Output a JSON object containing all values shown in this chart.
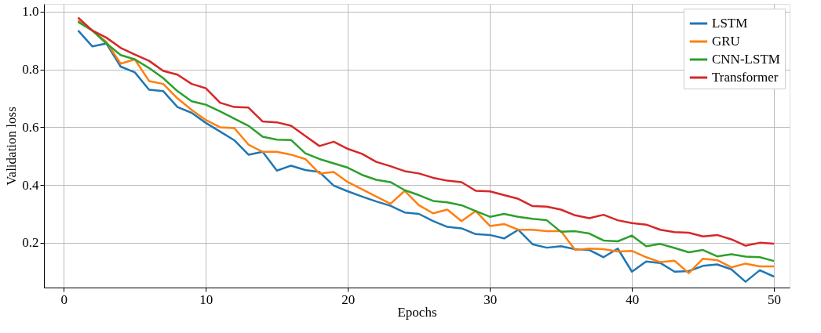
{
  "chart_data": {
    "type": "line",
    "xlabel": "Epochs",
    "ylabel": "Validation loss",
    "x": [
      1,
      2,
      3,
      4,
      5,
      6,
      7,
      8,
      9,
      10,
      11,
      12,
      13,
      14,
      15,
      16,
      17,
      18,
      19,
      20,
      21,
      22,
      23,
      24,
      25,
      26,
      27,
      28,
      29,
      30,
      31,
      32,
      33,
      34,
      35,
      36,
      37,
      38,
      39,
      40,
      41,
      42,
      43,
      44,
      45,
      46,
      47,
      48,
      49,
      50
    ],
    "xlim": [
      -1.4,
      51.1
    ],
    "xticks": [
      0,
      10,
      20,
      30,
      40,
      50
    ],
    "ylim": [
      0.045,
      1.027
    ],
    "yticks": [
      0.2,
      0.4,
      0.6,
      0.8,
      {
        "value": 1,
        "label": "1.0"
      }
    ],
    "grid": true,
    "legend": "top right",
    "line_style": "solid",
    "marker": "none",
    "series": [
      {
        "name": "LSTM",
        "color": "#1f77b4",
        "values": [
          0.935,
          0.88,
          0.89,
          0.81,
          0.79,
          0.73,
          0.725,
          0.67,
          0.65,
          0.615,
          0.585,
          0.555,
          0.505,
          0.515,
          0.45,
          0.467,
          0.452,
          0.445,
          0.398,
          0.378,
          0.36,
          0.343,
          0.328,
          0.305,
          0.3,
          0.275,
          0.255,
          0.25,
          0.23,
          0.227,
          0.215,
          0.245,
          0.195,
          0.183,
          0.188,
          0.178,
          0.175,
          0.15,
          0.18,
          0.1,
          0.135,
          0.13,
          0.1,
          0.102,
          0.12,
          0.125,
          0.108,
          0.065,
          0.105,
          0.083
        ]
      },
      {
        "name": "GRU",
        "color": "#ff7f0e",
        "values": [
          0.97,
          0.935,
          0.895,
          0.82,
          0.835,
          0.76,
          0.75,
          0.7,
          0.66,
          0.625,
          0.6,
          0.597,
          0.54,
          0.515,
          0.515,
          0.505,
          0.49,
          0.44,
          0.445,
          0.41,
          0.385,
          0.36,
          0.335,
          0.38,
          0.33,
          0.302,
          0.315,
          0.275,
          0.31,
          0.258,
          0.265,
          0.245,
          0.245,
          0.24,
          0.24,
          0.175,
          0.18,
          0.178,
          0.17,
          0.172,
          0.15,
          0.133,
          0.138,
          0.095,
          0.145,
          0.14,
          0.115,
          0.128,
          0.118,
          0.118
        ]
      },
      {
        "name": "CNN-LSTM",
        "color": "#2ca02c",
        "values": [
          0.965,
          0.935,
          0.89,
          0.85,
          0.835,
          0.805,
          0.77,
          0.725,
          0.69,
          0.678,
          0.655,
          0.63,
          0.605,
          0.567,
          0.557,
          0.556,
          0.51,
          0.49,
          0.475,
          0.46,
          0.435,
          0.418,
          0.41,
          0.382,
          0.365,
          0.345,
          0.34,
          0.33,
          0.31,
          0.29,
          0.3,
          0.29,
          0.283,
          0.278,
          0.238,
          0.24,
          0.232,
          0.208,
          0.205,
          0.225,
          0.188,
          0.196,
          0.182,
          0.167,
          0.175,
          0.153,
          0.16,
          0.152,
          0.15,
          0.137
        ]
      },
      {
        "name": "Transformer",
        "color": "#d62728",
        "values": [
          0.98,
          0.935,
          0.91,
          0.875,
          0.852,
          0.83,
          0.795,
          0.782,
          0.75,
          0.735,
          0.685,
          0.67,
          0.668,
          0.62,
          0.617,
          0.605,
          0.57,
          0.535,
          0.55,
          0.525,
          0.508,
          0.48,
          0.465,
          0.448,
          0.44,
          0.425,
          0.415,
          0.41,
          0.38,
          0.378,
          0.365,
          0.352,
          0.327,
          0.325,
          0.315,
          0.295,
          0.285,
          0.297,
          0.278,
          0.268,
          0.263,
          0.245,
          0.237,
          0.235,
          0.222,
          0.227,
          0.212,
          0.19,
          0.2,
          0.197
        ]
      }
    ]
  }
}
